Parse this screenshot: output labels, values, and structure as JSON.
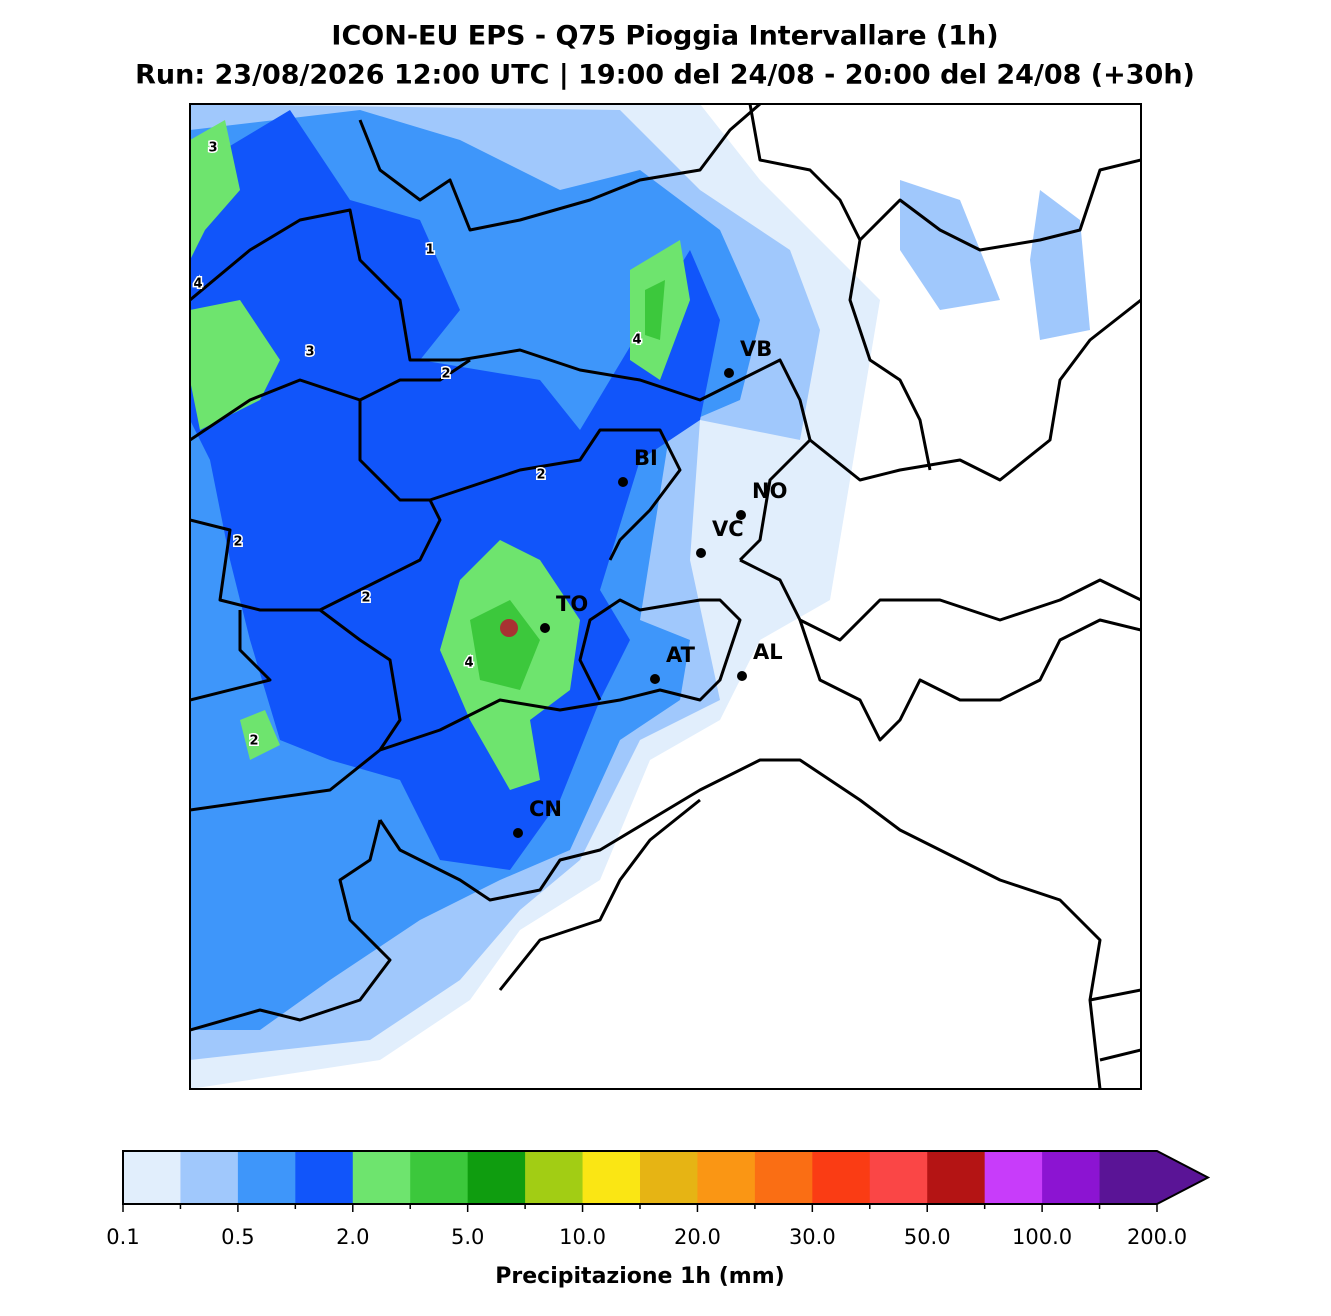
{
  "chart_data": {
    "type": "map",
    "title": "ICON-EU EPS - Q75 Pioggia Intervallare (1h)",
    "subtitle": "Run: 23/08/2026 12:00 UTC | 19:00 del 24/08 - 20:00 del 24/08 (+30h)",
    "cities": [
      "VB",
      "BI",
      "NO",
      "VC",
      "TO",
      "AT",
      "AL",
      "CN"
    ],
    "contour_labels": [
      3,
      1,
      4,
      3,
      2,
      4,
      2,
      2,
      2,
      4,
      2
    ],
    "colorbar": {
      "label": "Precipitazione 1h (mm)",
      "colors": [
        "#e1eefc",
        "#a0c8fc",
        "#3e96fa",
        "#1155fa",
        "#6ee46e",
        "#3cc83c",
        "#0f9d0f",
        "#a2cd14",
        "#fae614",
        "#e6b414",
        "#fa9614",
        "#fa6e14",
        "#fa3c14",
        "#fa4646",
        "#b41414",
        "#c83cfa",
        "#8c14d2",
        "#5a1496"
      ],
      "ticks": [
        0.1,
        0.5,
        {
          "value": 2,
          "label": "2.0"
        },
        {
          "value": 5,
          "label": "5.0"
        },
        {
          "value": 10,
          "label": "10.0"
        },
        {
          "value": 20,
          "label": "20.0"
        },
        {
          "value": 30,
          "label": "30.0"
        },
        {
          "value": 50,
          "label": "50.0"
        },
        {
          "value": 100,
          "label": "100.0"
        },
        {
          "value": 200,
          "label": "200.0"
        }
      ]
    }
  }
}
